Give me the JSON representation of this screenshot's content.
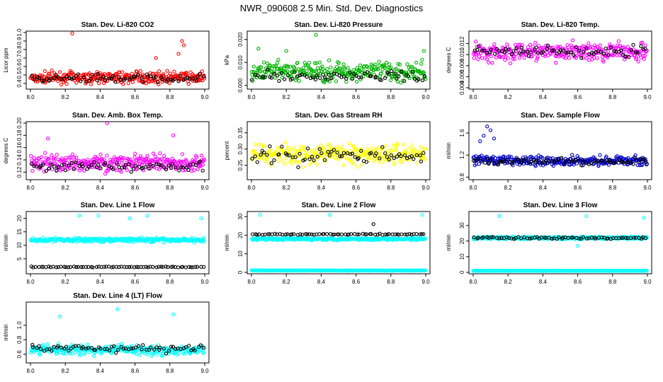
{
  "page_title": "NWR_090608  2.5 Min. Std. Dev. Diagnostics",
  "chart_data": [
    {
      "type": "scatter",
      "title": "Stan. Dev. Li-820 CO2",
      "ylabel": "Licor ppm",
      "xlim": [
        8.0,
        9.0
      ],
      "xticks": [
        "8.0",
        "8.2",
        "8.4",
        "8.6",
        "8.8",
        "9.0"
      ],
      "ylim": [
        0.35,
        1.0
      ],
      "yticks": [
        "0.4",
        "0.5",
        "0.6",
        "0.7",
        "0.8",
        "0.9",
        "1.0"
      ],
      "series": [
        {
          "color": "#ff0000",
          "base": 0.47,
          "spread": 0.06,
          "count": 300,
          "outliers": [
            [
              8.24,
              0.99
            ],
            [
              8.87,
              0.9
            ],
            [
              8.88,
              0.85
            ],
            [
              8.85,
              0.75
            ],
            [
              8.72,
              0.7
            ]
          ]
        },
        {
          "color": "#000000",
          "base": 0.46,
          "spread": 0.04,
          "count": 70,
          "outliers": []
        }
      ]
    },
    {
      "type": "scatter",
      "title": "Stan. Dev. Li-820 Pressure",
      "ylabel": "kPa",
      "xlim": [
        8.0,
        9.0
      ],
      "xticks": [
        "8.0",
        "8.2",
        "8.4",
        "8.6",
        "8.8",
        "9.0"
      ],
      "ylim": [
        -0.001,
        0.023
      ],
      "yticks": [
        "0.000",
        "0.010",
        "0.020"
      ],
      "series": [
        {
          "color": "#00b400",
          "base": 0.006,
          "spread": 0.004,
          "count": 300,
          "outliers": [
            [
              8.37,
              0.022
            ],
            [
              8.04,
              0.016
            ],
            [
              8.99,
              0.015
            ],
            [
              8.2,
              0.015
            ]
          ]
        },
        {
          "color": "#000000",
          "base": 0.004,
          "spread": 0.002,
          "count": 70,
          "outliers": []
        }
      ]
    },
    {
      "type": "scatter",
      "title": "Stan. Dev. Li-820 Temp.",
      "ylabel": "degrees C",
      "xlim": [
        8.0,
        9.0
      ],
      "xticks": [
        "8.0",
        "8.2",
        "8.4",
        "8.6",
        "8.8",
        "9.0"
      ],
      "ylim": [
        0.004,
        0.014
      ],
      "yticks": [
        "0.004",
        "0.006",
        "0.008",
        "0.010",
        "0.012"
      ],
      "series": [
        {
          "color": "#ff00ff",
          "base": 0.0105,
          "spread": 0.0015,
          "count": 300,
          "outliers": []
        },
        {
          "color": "#000000",
          "base": 0.0105,
          "spread": 0.001,
          "count": 70,
          "outliers": []
        }
      ]
    },
    {
      "type": "scatter",
      "title": "Stan. Dev. Amb. Box Temp.",
      "ylabel": "degrees C",
      "xlim": [
        8.0,
        9.0
      ],
      "xticks": [
        "8.0",
        "8.2",
        "8.4",
        "8.6",
        "8.8",
        "9.0"
      ],
      "ylim": [
        0.11,
        0.2
      ],
      "yticks": [
        "0.12",
        "0.14",
        "0.16",
        "0.18",
        "0.20"
      ],
      "series": [
        {
          "color": "#ff00ff",
          "base": 0.135,
          "spread": 0.012,
          "count": 300,
          "outliers": [
            [
              8.44,
              0.2
            ],
            [
              8.82,
              0.18
            ],
            [
              8.1,
              0.175
            ]
          ]
        },
        {
          "color": "#000000",
          "base": 0.13,
          "spread": 0.008,
          "count": 70,
          "outliers": []
        }
      ]
    },
    {
      "type": "scatter",
      "title": "Stan. Dev. Gas Stream RH",
      "ylabel": "percent",
      "xlim": [
        8.0,
        9.0
      ],
      "xticks": [
        "8.0",
        "8.2",
        "8.4",
        "8.6",
        "8.8",
        "9.0"
      ],
      "ylim": [
        0.21,
        0.38
      ],
      "yticks": [
        "0.25",
        "0.30",
        "0.35"
      ],
      "series": [
        {
          "color": "#ffff00",
          "base": 0.285,
          "spread": 0.03,
          "count": 300,
          "outliers": []
        },
        {
          "color": "#000000",
          "base": 0.28,
          "spread": 0.025,
          "count": 70,
          "outliers": []
        }
      ]
    },
    {
      "type": "scatter",
      "title": "Stan. Dev. Sample Flow",
      "ylabel": "ml/min",
      "xlim": [
        8.0,
        9.0
      ],
      "xticks": [
        "8.0",
        "8.2",
        "8.4",
        "8.6",
        "8.8",
        "9.0"
      ],
      "ylim": [
        0.78,
        1.78
      ],
      "yticks": [
        "0.8",
        "1.2",
        "1.6"
      ],
      "series": [
        {
          "color": "#0000c8",
          "base": 1.1,
          "spread": 0.08,
          "count": 300,
          "outliers": [
            [
              8.08,
              1.72
            ],
            [
              8.1,
              1.65
            ],
            [
              8.06,
              1.55
            ],
            [
              8.04,
              1.45
            ],
            [
              8.12,
              1.5
            ]
          ]
        },
        {
          "color": "#000000",
          "base": 1.08,
          "spread": 0.05,
          "count": 70,
          "outliers": []
        }
      ]
    },
    {
      "type": "scatter",
      "title": "Stan. Dev. Line 1 Flow",
      "ylabel": "ml/min",
      "xlim": [
        8.0,
        9.0
      ],
      "xticks": [
        "8.0",
        "8.2",
        "8.4",
        "8.6",
        "8.8",
        "9.0"
      ],
      "ylim": [
        0,
        22
      ],
      "yticks": [
        "5",
        "10",
        "15",
        "20"
      ],
      "series": [
        {
          "color": "#00ffff",
          "base": 12,
          "spread": 0.7,
          "count": 300,
          "outliers": [
            [
              8.39,
              21
            ],
            [
              8.67,
              21
            ],
            [
              8.98,
              20
            ],
            [
              8.57,
              20
            ],
            [
              8.28,
              21
            ]
          ]
        },
        {
          "color": "#000000",
          "base": 2,
          "spread": 0.15,
          "count": 70,
          "outliers": []
        }
      ]
    },
    {
      "type": "scatter",
      "title": "Stan. Dev. Line 2 Flow",
      "ylabel": "ml/min",
      "xlim": [
        8.0,
        9.0
      ],
      "xticks": [
        "8.0",
        "8.2",
        "8.4",
        "8.6",
        "8.8",
        "9.0"
      ],
      "ylim": [
        0,
        32
      ],
      "yticks": [
        "0",
        "10",
        "20",
        "30"
      ],
      "series": [
        {
          "color": "#00ffff",
          "base": 18,
          "spread": 0.6,
          "count": 300,
          "outliers": [
            [
              8.05,
              31
            ],
            [
              8.45,
              31
            ],
            [
              8.98,
              31
            ]
          ]
        },
        {
          "color": "#00ffff",
          "base": 1,
          "spread": 0.1,
          "count": 300,
          "outliers": []
        },
        {
          "color": "#000000",
          "base": 20.5,
          "spread": 0.3,
          "count": 70,
          "outliers": [
            [
              8.7,
              26
            ]
          ]
        }
      ]
    },
    {
      "type": "scatter",
      "title": "Stan. Dev. Line 3 Flow",
      "ylabel": "ml/min",
      "xlim": [
        8.0,
        9.0
      ],
      "xticks": [
        "8.0",
        "8.2",
        "8.4",
        "8.6",
        "8.8",
        "9.0"
      ],
      "ylim": [
        0,
        38
      ],
      "yticks": [
        "0",
        "10",
        "20",
        "30"
      ],
      "series": [
        {
          "color": "#00ffff",
          "base": 22,
          "spread": 0.8,
          "count": 300,
          "outliers": [
            [
              8.15,
              36
            ],
            [
              8.65,
              36
            ],
            [
              8.98,
              35
            ],
            [
              8.6,
              17
            ]
          ]
        },
        {
          "color": "#00ffff",
          "base": 1,
          "spread": 0.1,
          "count": 300,
          "outliers": []
        },
        {
          "color": "#000000",
          "base": 22,
          "spread": 0.6,
          "count": 70,
          "outliers": []
        }
      ]
    },
    {
      "type": "scatter",
      "title": "Stan. Dev. Line 4 (LT) Flow",
      "ylabel": "ml/min",
      "xlim": [
        8.0,
        9.0
      ],
      "xticks": [
        "8.0",
        "8.2",
        "8.4",
        "8.6",
        "8.8",
        "9.0"
      ],
      "ylim": [
        0.5,
        1.3
      ],
      "yticks": [
        "0.6",
        "0.8",
        "1.0"
      ],
      "series": [
        {
          "color": "#00ffff",
          "base": 0.66,
          "spread": 0.06,
          "count": 300,
          "outliers": [
            [
              8.17,
              1.12
            ],
            [
              8.5,
              1.22
            ],
            [
              8.82,
              1.15
            ]
          ]
        },
        {
          "color": "#000000",
          "base": 0.68,
          "spread": 0.05,
          "count": 70,
          "outliers": []
        }
      ]
    }
  ]
}
